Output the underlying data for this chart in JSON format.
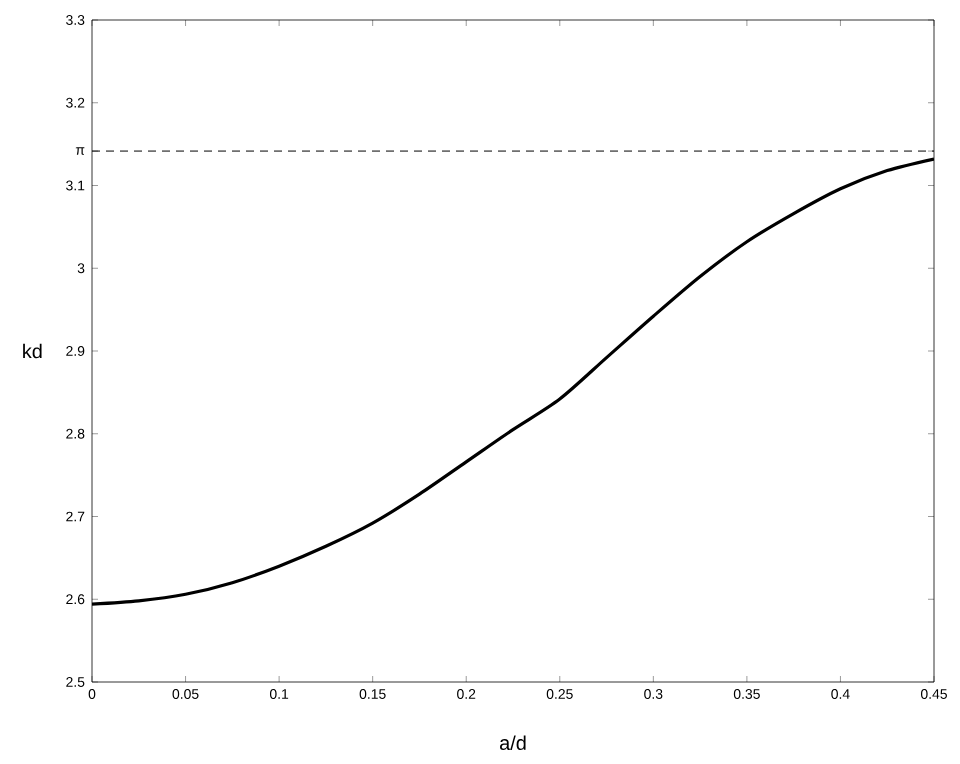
{
  "chart_data": {
    "type": "line",
    "xlabel": "a/d",
    "ylabel": "kd",
    "x": [
      0,
      0.025,
      0.05,
      0.075,
      0.1,
      0.125,
      0.15,
      0.175,
      0.2,
      0.225,
      0.25,
      0.275,
      0.3,
      0.325,
      0.35,
      0.375,
      0.4,
      0.425,
      0.45
    ],
    "series": [
      {
        "color": "#000000",
        "values": [
          2.594,
          2.598,
          2.606,
          2.62,
          2.64,
          2.664,
          2.692,
          2.727,
          2.766,
          2.805,
          2.842,
          2.892,
          2.942,
          2.99,
          3.032,
          3.066,
          3.096,
          3.118,
          3.132
        ]
      }
    ],
    "xlim": [
      0,
      0.45
    ],
    "ylim": [
      2.5,
      3.3
    ],
    "xticks": [
      0,
      0.05,
      0.1,
      0.15,
      0.2,
      0.25,
      0.3,
      0.35,
      0.4,
      0.45
    ],
    "yticks": [
      2.5,
      2.6,
      2.7,
      2.8,
      2.9,
      3,
      3.1,
      {
        "value": 3.1416,
        "label": "π"
      },
      3.2,
      3.3
    ],
    "ref_lines": [
      {
        "axis": "y",
        "value": 3.1416,
        "line_style": "dashed",
        "color": "#000000"
      }
    ],
    "grid": false,
    "marker": "none",
    "line_style": "solid"
  }
}
